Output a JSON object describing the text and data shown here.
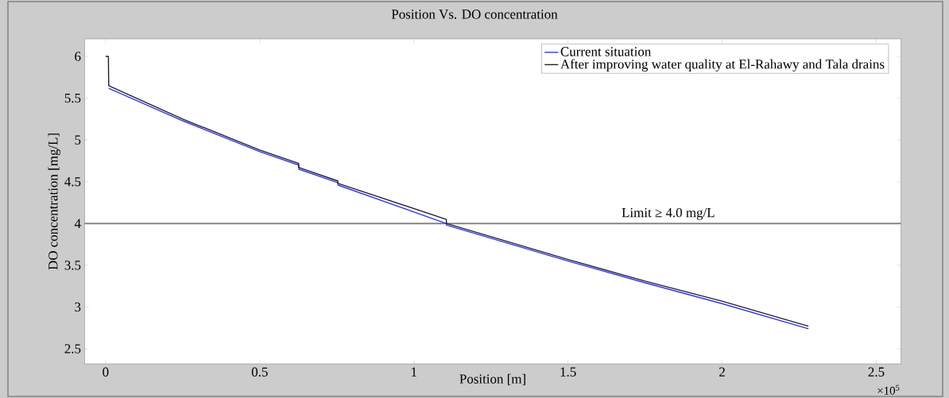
{
  "chart_data": {
    "type": "line",
    "title": "Position Vs. DO concentration",
    "xlabel": "Position [m]",
    "ylabel": "DO concentration [mg/L]",
    "series": [
      {
        "name": "Current situation",
        "color": "#3333ff",
        "x": [
          0.01,
          0.25,
          0.5,
          0.626,
          0.627,
          0.753,
          0.754,
          1.105,
          1.106,
          1.5,
          1.75,
          2.0,
          2.28
        ],
        "values": [
          5.62,
          5.23,
          4.86,
          4.7,
          4.65,
          4.49,
          4.46,
          4.0,
          3.98,
          3.55,
          3.29,
          3.04,
          2.74
        ]
      },
      {
        "name": "After improving water quality at El-Rahawy and Tala drains",
        "color": "#222222",
        "x": [
          0,
          0.009,
          0.01,
          0.25,
          0.5,
          0.626,
          0.627,
          0.753,
          0.754,
          1.105,
          1.106,
          1.5,
          1.75,
          2.0,
          2.28
        ],
        "values": [
          6.0,
          6.0,
          5.65,
          5.25,
          4.88,
          4.72,
          4.67,
          4.51,
          4.48,
          4.05,
          4.0,
          3.57,
          3.31,
          3.07,
          2.77
        ]
      }
    ],
    "xlim": [
      -0.068,
      2.58
    ],
    "ylim": [
      2.32,
      6.21
    ],
    "xticks": [
      0,
      0.5,
      1,
      1.5,
      2,
      2.5
    ],
    "yticks": [
      2.5,
      3,
      3.5,
      4,
      4.5,
      5,
      5.5,
      6
    ],
    "ref_lines": [
      {
        "axis": "y",
        "value": 4,
        "label": "Limit ≥ 4.0 mg/L",
        "color": "#777777"
      }
    ],
    "annotations": [
      "×10$^{5}$"
    ],
    "legend": "top right",
    "grid": false,
    "marker": "none",
    "line_style": "solid"
  }
}
